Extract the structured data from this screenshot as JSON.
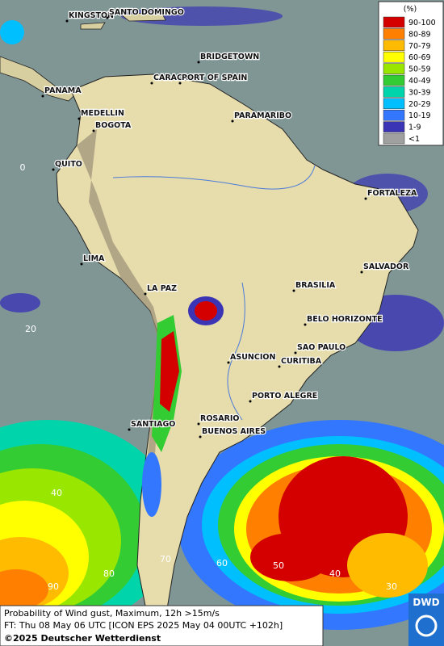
{
  "map": {
    "cities": [
      "KINGSTON",
      "SANTO DOMINGO",
      "BRIDGETOWN",
      "CARACAS",
      "PORT OF SPAIN",
      "PANAMA",
      "MEDELLIN",
      "BOGOTA",
      "PARAMARIBO",
      "QUITO",
      "FORTALEZA",
      "LIMA",
      "SALVADOR",
      "LA PAZ",
      "BRASILIA",
      "BELO HORIZONTE",
      "SAO PAULO",
      "ASUNCION",
      "CURITIBA",
      "PORTO ALEGRE",
      "ROSARIO",
      "SANTIAGO",
      "BUENOS AIRES"
    ],
    "latitude_labels": [
      "0",
      "20",
      "40"
    ],
    "longitude_labels": [
      "90",
      "80",
      "70",
      "60",
      "50",
      "40",
      "30"
    ],
    "legend": {
      "title": "(%)",
      "items": [
        {
          "label": "90-100",
          "color": "#d40000"
        },
        {
          "label": "80-89",
          "color": "#ff7f00"
        },
        {
          "label": "70-79",
          "color": "#ffbb00"
        },
        {
          "label": "60-69",
          "color": "#ffff00"
        },
        {
          "label": "50-59",
          "color": "#99e600"
        },
        {
          "label": "40-49",
          "color": "#33cc33"
        },
        {
          "label": "30-39",
          "color": "#00d4aa"
        },
        {
          "label": "20-29",
          "color": "#00bfff"
        },
        {
          "label": "10-19",
          "color": "#3377ff"
        },
        {
          "label": "1-9",
          "color": "#3b35b5"
        },
        {
          "label": "<1",
          "color": "#a0a0a0"
        }
      ]
    },
    "footer": {
      "line1": "Probability of Wind gust, Maximum, 12h >15m/s",
      "line2": "FT: Thu 08 May 06 UTC [ICON EPS 2025 May 04 00UTC +102h]",
      "line3": "©2025 Deutscher Wetterdienst",
      "logo": "DWD"
    }
  }
}
